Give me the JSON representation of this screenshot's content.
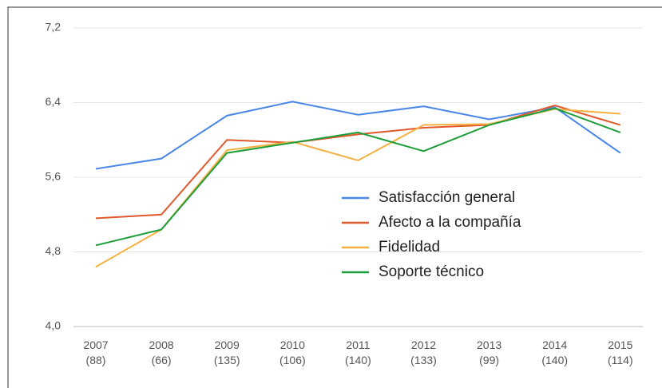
{
  "chart_data": {
    "type": "line",
    "categories": [
      "2007 (88)",
      "2008 (66)",
      "2009 (135)",
      "2010 (106)",
      "2011 (140)",
      "2012 (133)",
      "2013 (99)",
      "2014 (140)",
      "2015 (114)"
    ],
    "series": [
      {
        "name": "Satisfacción general",
        "color": "#4a86e8",
        "values": [
          5.69,
          5.8,
          6.26,
          6.41,
          6.27,
          6.36,
          6.22,
          6.35,
          5.86
        ]
      },
      {
        "name": "Afecto a la compañía",
        "color": "#e0582c",
        "values": [
          5.16,
          5.2,
          6.0,
          5.97,
          6.06,
          6.13,
          6.16,
          6.37,
          6.16
        ]
      },
      {
        "name": "Fidelidad",
        "color": "#f6b040",
        "values": [
          4.64,
          5.04,
          5.89,
          5.98,
          5.78,
          6.16,
          6.17,
          6.33,
          6.28
        ]
      },
      {
        "name": "Soporte técnico",
        "color": "#1e9e3a",
        "values": [
          4.87,
          5.04,
          5.86,
          5.97,
          6.08,
          5.88,
          6.16,
          6.34,
          6.08
        ]
      }
    ],
    "ylim": [
      4.0,
      7.2
    ],
    "yticks": [
      {
        "value": 4.0,
        "label": "4,0"
      },
      {
        "value": 4.8,
        "label": "4,8"
      },
      {
        "value": 5.6,
        "label": "5,6"
      },
      {
        "value": 6.4,
        "label": "6,4"
      },
      {
        "value": 7.2,
        "label": "7,2"
      }
    ],
    "grid": true,
    "legend": "center"
  }
}
